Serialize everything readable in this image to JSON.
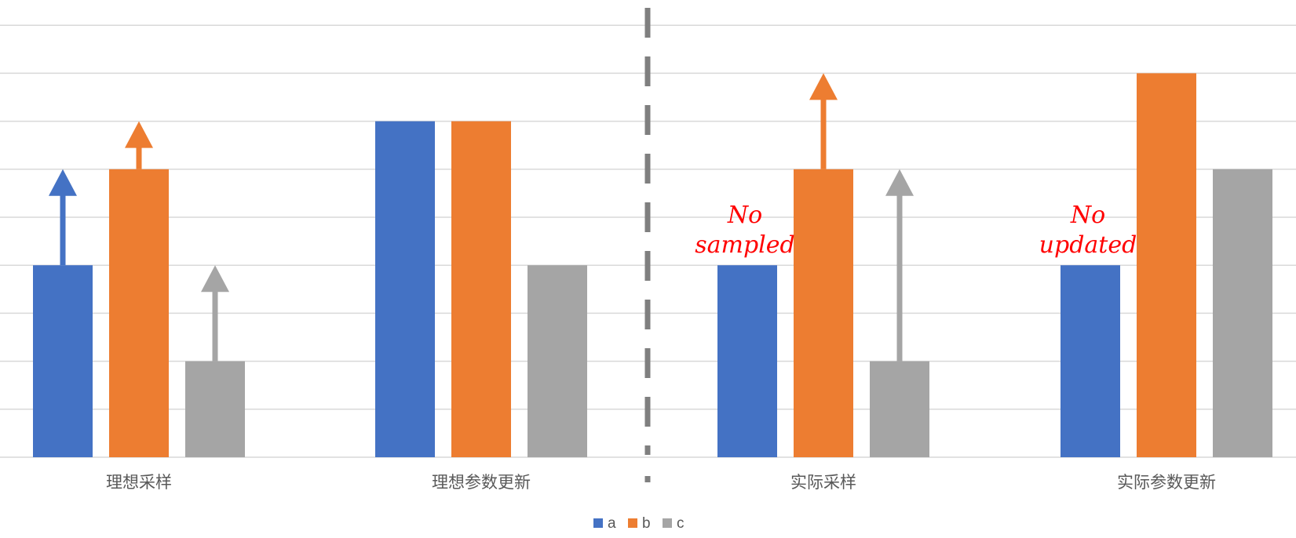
{
  "chart_data": {
    "type": "bar",
    "categories": [
      "理想采样",
      "理想参数更新",
      "实际采样",
      "实际参数更新"
    ],
    "series": [
      {
        "name": "a",
        "color": "#4472c4",
        "values": [
          4,
          7,
          4,
          4
        ]
      },
      {
        "name": "b",
        "color": "#ed7d31",
        "values": [
          6,
          7,
          6,
          8
        ]
      },
      {
        "name": "c",
        "color": "#a5a5a5",
        "values": [
          2,
          4,
          2,
          6
        ]
      }
    ],
    "ylim": [
      0,
      9.5
    ],
    "grid": true,
    "legend": "bottom-center",
    "arrows": [
      {
        "category": 0,
        "series": "a",
        "from": 4,
        "to": 6
      },
      {
        "category": 0,
        "series": "b",
        "from": 6,
        "to": 7
      },
      {
        "category": 0,
        "series": "c",
        "from": 2,
        "to": 4
      },
      {
        "category": 2,
        "series": "b",
        "from": 6,
        "to": 8
      },
      {
        "category": 2,
        "series": "c",
        "from": 2,
        "to": 6
      }
    ],
    "annotations": [
      {
        "category": 2,
        "series": "a",
        "lines": [
          "No",
          "sampled"
        ],
        "color": "#ff0000"
      },
      {
        "category": 3,
        "series": "a",
        "lines": [
          "No",
          "updated"
        ],
        "color": "#ff0000"
      }
    ],
    "divider": {
      "style": "dashed",
      "color": "#7f7f7f"
    }
  }
}
